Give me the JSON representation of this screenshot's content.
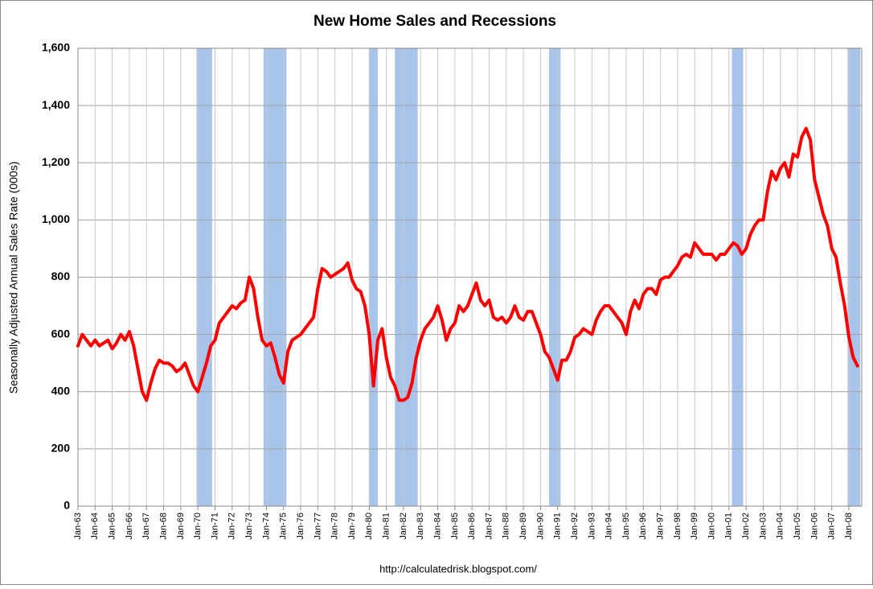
{
  "chart_data": {
    "type": "line",
    "title": "New Home Sales and Recessions",
    "y_label": "Seasonally Adjusted Annual Sales Rate (000s)",
    "source": "http://calculatedrisk.blogspot.com/",
    "categories": [
      "Jan-63",
      null,
      null,
      null,
      "Jan-64",
      null,
      null,
      null,
      "Jan-65",
      null,
      null,
      null,
      "Jan-66",
      null,
      null,
      null,
      "Jan-67",
      null,
      null,
      null,
      "Jan-68",
      null,
      null,
      null,
      "Jan-69",
      null,
      null,
      null,
      "Jan-70",
      null,
      null,
      null,
      "Jan-71",
      null,
      null,
      null,
      "Jan-72",
      null,
      null,
      null,
      "Jan-73",
      null,
      null,
      null,
      "Jan-74",
      null,
      null,
      null,
      "Jan-75",
      null,
      null,
      null,
      "Jan-76",
      null,
      null,
      null,
      "Jan-77",
      null,
      null,
      null,
      "Jan-78",
      null,
      null,
      null,
      "Jan-79",
      null,
      null,
      null,
      "Jan-80",
      null,
      null,
      null,
      "Jan-81",
      null,
      null,
      null,
      "Jan-82",
      null,
      null,
      null,
      "Jan-83",
      null,
      null,
      null,
      "Jan-84",
      null,
      null,
      null,
      "Jan-85",
      null,
      null,
      null,
      "Jan-86",
      null,
      null,
      null,
      "Jan-87",
      null,
      null,
      null,
      "Jan-88",
      null,
      null,
      null,
      "Jan-89",
      null,
      null,
      null,
      "Jan-90",
      null,
      null,
      null,
      "Jan-91",
      null,
      null,
      null,
      "Jan-92",
      null,
      null,
      null,
      "Jan-93",
      null,
      null,
      null,
      "Jan-94",
      null,
      null,
      null,
      "Jan-95",
      null,
      null,
      null,
      "Jan-96",
      null,
      null,
      null,
      "Jan-97",
      null,
      null,
      null,
      "Jan-98",
      null,
      null,
      null,
      "Jan-99",
      null,
      null,
      null,
      "Jan-00",
      null,
      null,
      null,
      "Jan-01",
      null,
      null,
      null,
      "Jan-02",
      null,
      null,
      null,
      "Jan-03",
      null,
      null,
      null,
      "Jan-04",
      null,
      null,
      null,
      "Jan-05",
      null,
      null,
      null,
      "Jan-06",
      null,
      null,
      null,
      "Jan-07",
      null,
      null,
      null,
      "Jan-08",
      null,
      null
    ],
    "series": [
      {
        "name": "New Home Sales",
        "color": "#ff0000",
        "values": [
          560,
          600,
          580,
          560,
          580,
          560,
          570,
          580,
          550,
          570,
          600,
          580,
          610,
          560,
          480,
          400,
          370,
          430,
          480,
          510,
          500,
          500,
          490,
          470,
          480,
          500,
          460,
          420,
          400,
          450,
          500,
          560,
          580,
          640,
          660,
          680,
          700,
          690,
          710,
          720,
          800,
          760,
          660,
          580,
          560,
          570,
          520,
          460,
          430,
          540,
          580,
          590,
          600,
          620,
          640,
          660,
          760,
          830,
          820,
          800,
          810,
          820,
          830,
          850,
          790,
          760,
          750,
          700,
          600,
          420,
          580,
          620,
          520,
          450,
          420,
          370,
          370,
          380,
          430,
          520,
          580,
          620,
          640,
          660,
          700,
          650,
          580,
          620,
          640,
          700,
          680,
          700,
          740,
          780,
          720,
          700,
          720,
          660,
          650,
          660,
          640,
          660,
          700,
          660,
          650,
          680,
          680,
          640,
          600,
          540,
          520,
          480,
          440,
          510,
          510,
          540,
          590,
          600,
          620,
          610,
          600,
          650,
          680,
          700,
          700,
          680,
          660,
          640,
          600,
          680,
          720,
          690,
          740,
          760,
          760,
          740,
          790,
          800,
          800,
          820,
          840,
          870,
          880,
          870,
          920,
          900,
          880,
          880,
          880,
          860,
          880,
          880,
          900,
          920,
          910,
          880,
          900,
          950,
          980,
          1000,
          1000,
          1100,
          1170,
          1140,
          1180,
          1200,
          1150,
          1230,
          1220,
          1290,
          1320,
          1280,
          1140,
          1080,
          1020,
          980,
          900,
          870,
          780,
          700,
          590,
          520,
          490
        ]
      }
    ],
    "recessions": [
      [
        1969.92,
        1970.83
      ],
      [
        1973.83,
        1975.17
      ],
      [
        1980.0,
        1980.5
      ],
      [
        1981.5,
        1982.83
      ],
      [
        1990.5,
        1991.17
      ],
      [
        2001.17,
        2001.83
      ],
      [
        2007.92,
        2008.67
      ]
    ],
    "recession_color": "#a9c4ea",
    "first_year": 1963,
    "ylim": [
      0,
      1600
    ],
    "yticks": [
      0,
      200,
      400,
      600,
      800,
      {
        "value": 1000,
        "label": "1,000"
      },
      {
        "value": 1200,
        "label": "1,200"
      },
      {
        "value": 1400,
        "label": "1,400"
      },
      {
        "value": 1600,
        "label": "1,600"
      }
    ],
    "grid": true
  }
}
